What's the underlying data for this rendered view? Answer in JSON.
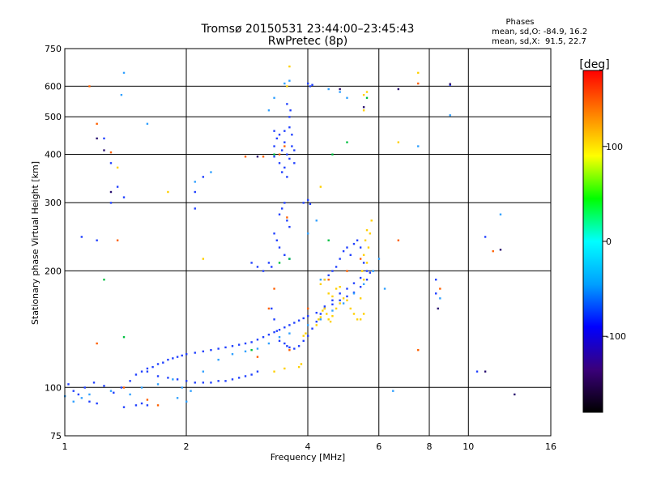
{
  "chart_data": {
    "type": "scatter",
    "title": "Tromsø 20150531 23:44:00–23:45:43",
    "subtitle": "RwPretec (8p)",
    "xlabel": "Frequency [MHz]",
    "ylabel": "Stationary phase Virtual Height [km]",
    "x_scale": "log2",
    "y_scale": "log",
    "xlim": [
      1,
      16
    ],
    "ylim": [
      75,
      750
    ],
    "x_ticks": [
      1,
      2,
      4,
      6,
      8,
      10,
      16
    ],
    "y_ticks": [
      75,
      100,
      200,
      300,
      400,
      500,
      600,
      750
    ],
    "grid": true,
    "phase_info": {
      "title": "Phases",
      "line_o": "mean, sd,O: -84.9, 16.2",
      "line_x": "mean, sd,X:  91.5, 22.7"
    },
    "colorbar": {
      "label": "[deg]",
      "range": [
        -180,
        180
      ],
      "ticks": [
        100,
        0,
        -100
      ],
      "colors": [
        "#000000",
        "#3a007a",
        "#0000ff",
        "#00a0ff",
        "#00ffff",
        "#00ff00",
        "#ffff00",
        "#ff8000",
        "#ff0000"
      ]
    },
    "series": [
      {
        "color": "#2040ff",
        "points": [
          [
            1.02,
            102
          ],
          [
            1.05,
            98
          ],
          [
            1.08,
            96
          ],
          [
            1.12,
            100
          ],
          [
            1.18,
            103
          ],
          [
            1.25,
            101
          ],
          [
            1.32,
            97
          ],
          [
            1.38,
            100
          ],
          [
            1.45,
            104
          ],
          [
            1.5,
            108
          ],
          [
            1.55,
            110
          ],
          [
            1.6,
            112
          ],
          [
            1.65,
            113
          ],
          [
            1.7,
            115
          ],
          [
            1.75,
            116
          ],
          [
            1.8,
            118
          ],
          [
            1.85,
            119
          ],
          [
            1.9,
            120
          ],
          [
            1.95,
            121
          ],
          [
            2.0,
            122
          ],
          [
            2.1,
            123
          ],
          [
            2.2,
            124
          ],
          [
            2.3,
            125
          ],
          [
            2.4,
            126
          ],
          [
            2.5,
            127
          ],
          [
            2.6,
            128
          ],
          [
            2.7,
            129
          ],
          [
            2.8,
            130
          ],
          [
            2.9,
            131
          ],
          [
            3.0,
            133
          ],
          [
            3.1,
            135
          ],
          [
            3.2,
            137
          ],
          [
            3.3,
            139
          ],
          [
            3.4,
            141
          ],
          [
            3.5,
            143
          ],
          [
            3.6,
            145
          ],
          [
            3.7,
            147
          ],
          [
            3.8,
            149
          ],
          [
            3.9,
            151
          ],
          [
            4.0,
            153
          ],
          [
            4.2,
            156
          ],
          [
            4.4,
            160
          ],
          [
            4.6,
            164
          ],
          [
            4.8,
            168
          ],
          [
            5.0,
            172
          ],
          [
            5.2,
            176
          ],
          [
            5.4,
            182
          ],
          [
            5.6,
            190
          ],
          [
            5.7,
            198
          ],
          [
            1.6,
            110
          ],
          [
            1.7,
            107
          ],
          [
            1.8,
            106
          ],
          [
            1.9,
            105
          ],
          [
            2.0,
            104
          ],
          [
            2.1,
            103
          ],
          [
            2.2,
            103
          ],
          [
            2.3,
            103
          ],
          [
            2.4,
            104
          ],
          [
            2.5,
            104
          ],
          [
            2.6,
            105
          ],
          [
            2.7,
            106
          ],
          [
            2.8,
            107
          ],
          [
            2.9,
            108
          ],
          [
            3.0,
            110
          ],
          [
            1.5,
            90
          ],
          [
            1.55,
            91
          ],
          [
            1.6,
            90
          ],
          [
            1.4,
            89
          ],
          [
            1.2,
            91
          ],
          [
            1.15,
            92
          ],
          [
            3.25,
            160
          ],
          [
            3.3,
            150
          ],
          [
            3.35,
            140
          ],
          [
            3.4,
            132
          ],
          [
            3.5,
            130
          ],
          [
            3.55,
            128
          ],
          [
            3.6,
            127
          ],
          [
            3.7,
            126
          ],
          [
            3.8,
            128
          ],
          [
            3.9,
            132
          ],
          [
            4.0,
            136
          ],
          [
            4.1,
            142
          ],
          [
            4.2,
            148
          ],
          [
            4.3,
            155
          ],
          [
            4.4,
            162
          ],
          [
            4.6,
            168
          ],
          [
            4.8,
            175
          ],
          [
            5.0,
            180
          ],
          [
            5.2,
            186
          ],
          [
            5.4,
            192
          ],
          [
            5.6,
            200
          ],
          [
            3.3,
            395
          ],
          [
            3.3,
            420
          ],
          [
            3.35,
            440
          ],
          [
            3.4,
            380
          ],
          [
            3.45,
            410
          ],
          [
            3.5,
            460
          ],
          [
            3.5,
            430
          ],
          [
            3.55,
            400
          ],
          [
            3.6,
            470
          ],
          [
            3.6,
            390
          ],
          [
            3.65,
            420
          ],
          [
            3.65,
            450
          ],
          [
            3.7,
            410
          ],
          [
            3.7,
            380
          ],
          [
            3.45,
            360
          ],
          [
            3.55,
            350
          ],
          [
            3.6,
            500
          ],
          [
            3.62,
            520
          ],
          [
            3.55,
            540
          ],
          [
            3.5,
            370
          ],
          [
            3.4,
            450
          ],
          [
            3.3,
            460
          ],
          [
            3.4,
            280
          ],
          [
            3.45,
            290
          ],
          [
            3.5,
            300
          ],
          [
            3.55,
            270
          ],
          [
            3.6,
            260
          ],
          [
            3.3,
            250
          ],
          [
            3.35,
            240
          ],
          [
            3.4,
            230
          ],
          [
            3.5,
            220
          ],
          [
            3.6,
            215
          ],
          [
            3.2,
            210
          ],
          [
            3.25,
            205
          ],
          [
            3.1,
            200
          ],
          [
            3.0,
            205
          ],
          [
            2.9,
            210
          ],
          [
            3.9,
            300
          ],
          [
            4.0,
            305
          ],
          [
            4.05,
            298
          ],
          [
            4.0,
            610
          ],
          [
            4.05,
            600
          ],
          [
            4.1,
            605
          ],
          [
            1.3,
            300
          ],
          [
            1.4,
            310
          ],
          [
            1.35,
            330
          ],
          [
            1.3,
            380
          ],
          [
            1.25,
            440
          ],
          [
            1.2,
            240
          ],
          [
            1.1,
            245
          ],
          [
            2.1,
            320
          ],
          [
            2.2,
            350
          ],
          [
            2.1,
            290
          ],
          [
            10.5,
            110
          ],
          [
            11.0,
            245
          ],
          [
            8.3,
            190
          ],
          [
            9.0,
            605
          ],
          [
            8.3,
            175
          ],
          [
            4.8,
            215
          ],
          [
            4.9,
            225
          ],
          [
            5.0,
            230
          ],
          [
            5.1,
            220
          ],
          [
            5.2,
            235
          ],
          [
            5.3,
            240
          ],
          [
            5.4,
            230
          ],
          [
            5.5,
            210
          ],
          [
            4.7,
            205
          ],
          [
            4.6,
            200
          ],
          [
            4.5,
            195
          ],
          [
            4.4,
            190
          ]
        ]
      },
      {
        "color": "#30a0ff",
        "points": [
          [
            1.0,
            95
          ],
          [
            1.05,
            92
          ],
          [
            1.1,
            94
          ],
          [
            1.15,
            96
          ],
          [
            1.3,
            98
          ],
          [
            1.45,
            96
          ],
          [
            1.55,
            100
          ],
          [
            1.7,
            102
          ],
          [
            1.85,
            105
          ],
          [
            1.95,
            100
          ],
          [
            2.05,
            98
          ],
          [
            2.0,
            92
          ],
          [
            1.9,
            94
          ],
          [
            2.2,
            110
          ],
          [
            2.4,
            118
          ],
          [
            2.6,
            122
          ],
          [
            2.8,
            124
          ],
          [
            3.0,
            126
          ],
          [
            3.2,
            130
          ],
          [
            3.4,
            135
          ],
          [
            3.6,
            138
          ],
          [
            4.0,
            145
          ],
          [
            4.3,
            150
          ],
          [
            4.6,
            158
          ],
          [
            4.9,
            165
          ],
          [
            5.2,
            175
          ],
          [
            5.5,
            185
          ],
          [
            5.8,
            200
          ],
          [
            6.0,
            215
          ],
          [
            3.2,
            520
          ],
          [
            3.3,
            560
          ],
          [
            3.5,
            610
          ],
          [
            3.6,
            620
          ],
          [
            4.5,
            590
          ],
          [
            4.8,
            580
          ],
          [
            5.0,
            560
          ],
          [
            2.1,
            340
          ],
          [
            2.3,
            360
          ],
          [
            1.6,
            480
          ],
          [
            1.4,
            650
          ],
          [
            1.38,
            570
          ],
          [
            12.0,
            280
          ],
          [
            8.5,
            170
          ],
          [
            7.5,
            420
          ],
          [
            9.0,
            505
          ],
          [
            6.5,
            98
          ],
          [
            4.3,
            190
          ],
          [
            4.2,
            270
          ],
          [
            4.0,
            250
          ],
          [
            5.8,
            200
          ],
          [
            6.2,
            180
          ]
        ]
      },
      {
        "color": "#ffd000",
        "points": [
          [
            4.2,
            145
          ],
          [
            4.25,
            150
          ],
          [
            4.3,
            152
          ],
          [
            4.35,
            158
          ],
          [
            4.4,
            160
          ],
          [
            4.45,
            155
          ],
          [
            4.5,
            150
          ],
          [
            4.55,
            148
          ],
          [
            4.6,
            153
          ],
          [
            4.7,
            160
          ],
          [
            4.8,
            165
          ],
          [
            4.9,
            170
          ],
          [
            5.0,
            168
          ],
          [
            5.1,
            160
          ],
          [
            5.2,
            155
          ],
          [
            5.3,
            150
          ],
          [
            5.4,
            170
          ],
          [
            5.5,
            190
          ],
          [
            5.6,
            210
          ],
          [
            5.65,
            230
          ],
          [
            5.7,
            250
          ],
          [
            5.75,
            270
          ],
          [
            5.5,
            155
          ],
          [
            5.4,
            150
          ],
          [
            5.45,
            200
          ],
          [
            5.5,
            220
          ],
          [
            5.55,
            240
          ],
          [
            5.6,
            255
          ],
          [
            4.3,
            185
          ],
          [
            4.4,
            190
          ],
          [
            4.5,
            175
          ],
          [
            4.6,
            172
          ],
          [
            4.7,
            180
          ],
          [
            4.8,
            182
          ],
          [
            3.9,
            136
          ],
          [
            3.95,
            138
          ],
          [
            3.8,
            113
          ],
          [
            3.85,
            115
          ],
          [
            3.3,
            110
          ],
          [
            3.5,
            112
          ],
          [
            5.5,
            570
          ],
          [
            5.6,
            580
          ],
          [
            5.5,
            520
          ],
          [
            3.6,
            675
          ],
          [
            3.55,
            600
          ],
          [
            4.3,
            330
          ],
          [
            1.35,
            370
          ],
          [
            1.8,
            320
          ],
          [
            2.2,
            215
          ],
          [
            6.7,
            430
          ],
          [
            7.5,
            650
          ]
        ]
      },
      {
        "color": "#ff6000",
        "points": [
          [
            3.2,
            160
          ],
          [
            3.3,
            180
          ],
          [
            3.5,
            420
          ],
          [
            3.4,
            400
          ],
          [
            3.1,
            395
          ],
          [
            1.2,
            480
          ],
          [
            1.15,
            600
          ],
          [
            1.35,
            240
          ],
          [
            1.2,
            130
          ],
          [
            1.4,
            100
          ],
          [
            1.6,
            93
          ],
          [
            1.7,
            90
          ],
          [
            3.0,
            120
          ],
          [
            3.6,
            125
          ],
          [
            4.0,
            160
          ],
          [
            4.5,
            190
          ],
          [
            5.0,
            200
          ],
          [
            5.4,
            215
          ],
          [
            7.5,
            610
          ],
          [
            7.5,
            125
          ],
          [
            11.5,
            225
          ],
          [
            8.5,
            180
          ],
          [
            6.7,
            240
          ],
          [
            1.3,
            405
          ],
          [
            2.8,
            395
          ],
          [
            3.55,
            275
          ]
        ]
      },
      {
        "color": "#00c040",
        "points": [
          [
            5.0,
            430
          ],
          [
            4.6,
            400
          ],
          [
            5.6,
            560
          ],
          [
            3.4,
            210
          ],
          [
            3.6,
            215
          ],
          [
            1.25,
            190
          ],
          [
            2.9,
            125
          ],
          [
            3.3,
            400
          ],
          [
            4.5,
            240
          ],
          [
            1.4,
            135
          ]
        ]
      },
      {
        "color": "#2a1070",
        "points": [
          [
            1.2,
            440
          ],
          [
            1.25,
            410
          ],
          [
            1.3,
            320
          ],
          [
            3.0,
            395
          ],
          [
            4.8,
            590
          ],
          [
            5.5,
            530
          ],
          [
            6.7,
            590
          ],
          [
            9.0,
            608
          ],
          [
            13.0,
            96
          ],
          [
            11.0,
            110
          ],
          [
            12.0,
            227
          ],
          [
            8.4,
            160
          ]
        ]
      }
    ]
  }
}
